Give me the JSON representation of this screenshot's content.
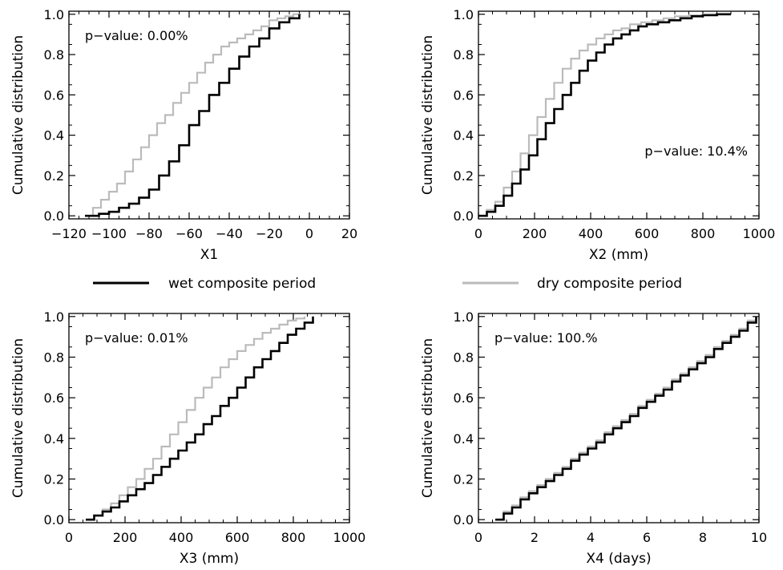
{
  "legend": {
    "wet_label": "wet composite period",
    "dry_label": "dry composite period",
    "wet_color": "#000000",
    "dry_color": "#bbbbbb"
  },
  "chart_data": [
    {
      "type": "line",
      "step": true,
      "xlabel": "X1",
      "ylabel": "Cumulative distribution",
      "xlim": [
        -120,
        20
      ],
      "ylim": [
        0,
        1
      ],
      "xticks": [
        -120,
        -100,
        -80,
        -60,
        -40,
        -20,
        0,
        20
      ],
      "yticks": [
        0.0,
        0.2,
        0.4,
        0.6,
        0.8,
        1.0
      ],
      "annotation": "p−value: 0.00%",
      "series": [
        {
          "name": "wet composite period",
          "color": "#000000",
          "x": [
            -112,
            -105,
            -100,
            -95,
            -90,
            -85,
            -80,
            -75,
            -70,
            -65,
            -60,
            -55,
            -50,
            -45,
            -40,
            -35,
            -30,
            -25,
            -20,
            -15,
            -10,
            -5
          ],
          "y": [
            0.0,
            0.01,
            0.02,
            0.04,
            0.06,
            0.09,
            0.13,
            0.2,
            0.27,
            0.35,
            0.45,
            0.52,
            0.6,
            0.66,
            0.73,
            0.79,
            0.84,
            0.88,
            0.93,
            0.96,
            0.98,
            1.0
          ]
        },
        {
          "name": "dry composite period",
          "color": "#bbbbbb",
          "x": [
            -112,
            -108,
            -104,
            -100,
            -96,
            -92,
            -88,
            -84,
            -80,
            -76,
            -72,
            -68,
            -64,
            -60,
            -56,
            -52,
            -48,
            -44,
            -40,
            -36,
            -32,
            -28,
            -24,
            -20,
            -16,
            -12,
            -8,
            -4
          ],
          "y": [
            0.0,
            0.04,
            0.08,
            0.12,
            0.16,
            0.22,
            0.28,
            0.34,
            0.4,
            0.46,
            0.5,
            0.56,
            0.61,
            0.66,
            0.71,
            0.76,
            0.8,
            0.84,
            0.86,
            0.88,
            0.9,
            0.92,
            0.94,
            0.97,
            0.98,
            0.99,
            1.0,
            1.0
          ]
        }
      ]
    },
    {
      "type": "line",
      "step": true,
      "xlabel": "X2 (mm)",
      "ylabel": "Cumulative distribution",
      "xlim": [
        0,
        1000
      ],
      "ylim": [
        0,
        1
      ],
      "xticks": [
        0,
        200,
        400,
        600,
        800,
        1000
      ],
      "yticks": [
        0.0,
        0.2,
        0.4,
        0.6,
        0.8,
        1.0
      ],
      "annotation": "p−value: 10.4%",
      "series": [
        {
          "name": "wet composite period",
          "color": "#000000",
          "x": [
            0,
            30,
            60,
            90,
            120,
            150,
            180,
            210,
            240,
            270,
            300,
            330,
            360,
            390,
            420,
            450,
            480,
            510,
            540,
            570,
            600,
            640,
            680,
            720,
            760,
            800,
            850,
            900
          ],
          "y": [
            0.0,
            0.02,
            0.05,
            0.1,
            0.16,
            0.23,
            0.3,
            0.38,
            0.46,
            0.53,
            0.6,
            0.66,
            0.72,
            0.77,
            0.81,
            0.85,
            0.88,
            0.9,
            0.92,
            0.94,
            0.95,
            0.96,
            0.97,
            0.98,
            0.99,
            0.995,
            1.0,
            1.0
          ]
        },
        {
          "name": "dry composite period",
          "color": "#bbbbbb",
          "x": [
            0,
            30,
            60,
            90,
            120,
            150,
            180,
            210,
            240,
            270,
            300,
            330,
            360,
            390,
            420,
            450,
            480,
            510,
            540,
            580,
            620,
            660,
            700,
            750,
            800,
            900
          ],
          "y": [
            0.0,
            0.03,
            0.07,
            0.14,
            0.22,
            0.31,
            0.4,
            0.49,
            0.58,
            0.66,
            0.73,
            0.78,
            0.82,
            0.85,
            0.88,
            0.9,
            0.92,
            0.93,
            0.95,
            0.96,
            0.97,
            0.98,
            0.99,
            0.995,
            1.0,
            1.0
          ]
        }
      ]
    },
    {
      "type": "line",
      "step": true,
      "xlabel": "X3 (mm)",
      "ylabel": "Cumulative distribution",
      "xlim": [
        0,
        1000
      ],
      "ylim": [
        0,
        1
      ],
      "xticks": [
        0,
        200,
        400,
        600,
        800,
        1000
      ],
      "yticks": [
        0.0,
        0.2,
        0.4,
        0.6,
        0.8,
        1.0
      ],
      "annotation": "p−value: 0.01%",
      "series": [
        {
          "name": "wet composite period",
          "color": "#000000",
          "x": [
            60,
            90,
            120,
            150,
            180,
            210,
            240,
            270,
            300,
            330,
            360,
            390,
            420,
            450,
            480,
            510,
            540,
            570,
            600,
            630,
            660,
            690,
            720,
            750,
            780,
            810,
            840,
            870
          ],
          "y": [
            0.0,
            0.02,
            0.04,
            0.06,
            0.09,
            0.12,
            0.15,
            0.18,
            0.22,
            0.26,
            0.3,
            0.34,
            0.38,
            0.42,
            0.47,
            0.51,
            0.56,
            0.6,
            0.65,
            0.7,
            0.75,
            0.79,
            0.83,
            0.87,
            0.91,
            0.94,
            0.97,
            1.0
          ]
        },
        {
          "name": "dry composite period",
          "color": "#bbbbbb",
          "x": [
            60,
            90,
            120,
            150,
            180,
            210,
            240,
            270,
            300,
            330,
            360,
            390,
            420,
            450,
            480,
            510,
            540,
            570,
            600,
            630,
            660,
            690,
            720,
            750,
            780,
            810,
            840
          ],
          "y": [
            0.0,
            0.02,
            0.05,
            0.08,
            0.12,
            0.16,
            0.2,
            0.25,
            0.3,
            0.36,
            0.42,
            0.48,
            0.54,
            0.6,
            0.65,
            0.7,
            0.75,
            0.79,
            0.83,
            0.86,
            0.89,
            0.92,
            0.94,
            0.96,
            0.98,
            0.99,
            1.0
          ]
        }
      ]
    },
    {
      "type": "line",
      "step": true,
      "xlabel": "X4 (days)",
      "ylabel": "Cumulative distribution",
      "xlim": [
        0,
        10
      ],
      "ylim": [
        0,
        1
      ],
      "xticks": [
        0,
        2,
        4,
        6,
        8,
        10
      ],
      "yticks": [
        0.0,
        0.2,
        0.4,
        0.6,
        0.8,
        1.0
      ],
      "annotation": "p−value: 100.%",
      "series": [
        {
          "name": "wet composite period",
          "color": "#000000",
          "x": [
            0.6,
            0.9,
            1.2,
            1.5,
            1.8,
            2.1,
            2.4,
            2.7,
            3.0,
            3.3,
            3.6,
            3.9,
            4.2,
            4.5,
            4.8,
            5.1,
            5.4,
            5.7,
            6.0,
            6.3,
            6.6,
            6.9,
            7.2,
            7.5,
            7.8,
            8.1,
            8.4,
            8.7,
            9.0,
            9.3,
            9.6,
            9.9
          ],
          "y": [
            0.0,
            0.03,
            0.06,
            0.1,
            0.13,
            0.16,
            0.19,
            0.22,
            0.25,
            0.29,
            0.32,
            0.35,
            0.38,
            0.42,
            0.45,
            0.48,
            0.51,
            0.55,
            0.58,
            0.61,
            0.64,
            0.68,
            0.71,
            0.74,
            0.77,
            0.8,
            0.84,
            0.87,
            0.9,
            0.93,
            0.97,
            1.0
          ]
        },
        {
          "name": "dry composite period",
          "color": "#bbbbbb",
          "x": [
            0.6,
            0.9,
            1.2,
            1.5,
            1.8,
            2.1,
            2.4,
            2.7,
            3.0,
            3.3,
            3.6,
            3.9,
            4.2,
            4.5,
            4.8,
            5.1,
            5.4,
            5.7,
            6.0,
            6.3,
            6.6,
            6.9,
            7.2,
            7.5,
            7.8,
            8.1,
            8.4,
            8.7,
            9.0,
            9.3,
            9.6,
            9.9
          ],
          "y": [
            0.0,
            0.04,
            0.07,
            0.11,
            0.14,
            0.17,
            0.2,
            0.23,
            0.26,
            0.3,
            0.33,
            0.36,
            0.39,
            0.43,
            0.46,
            0.49,
            0.52,
            0.56,
            0.59,
            0.62,
            0.65,
            0.69,
            0.72,
            0.75,
            0.78,
            0.81,
            0.85,
            0.88,
            0.91,
            0.94,
            0.98,
            1.0
          ]
        }
      ]
    }
  ]
}
